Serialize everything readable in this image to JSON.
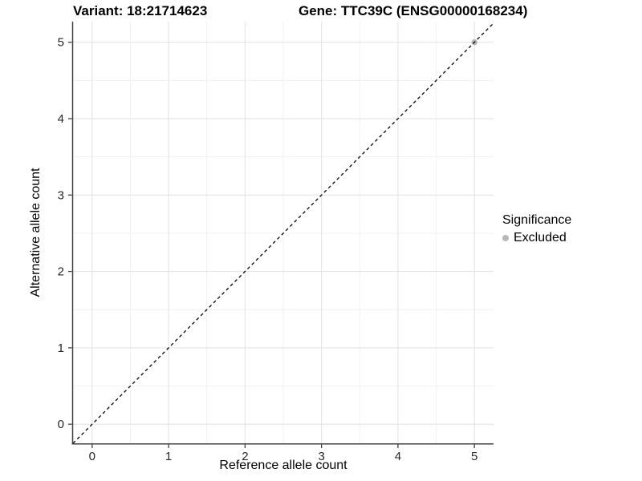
{
  "titles": {
    "left": "Variant: 18:21714623",
    "right": "Gene: TTC39C (ENSG00000168234)"
  },
  "chart_data": {
    "type": "scatter",
    "xlabel": "Reference allele count",
    "ylabel": "Alternative allele count",
    "xlim": [
      -0.25,
      5.25
    ],
    "ylim": [
      -0.25,
      5.27
    ],
    "x_ticks": [
      0,
      1,
      2,
      3,
      4,
      5
    ],
    "y_ticks": [
      0,
      1,
      2,
      3,
      4,
      5
    ],
    "grid": {
      "major": true,
      "minor": true
    },
    "reference_line": {
      "kind": "identity y=x",
      "style": "dashed",
      "color": "#000000"
    },
    "points": [
      {
        "x": 5,
        "y": 5,
        "significance": "Excluded"
      }
    ],
    "legend": {
      "title": "Significance",
      "position": "right",
      "items": [
        {
          "label": "Excluded",
          "color": "#b8b8b8"
        }
      ]
    },
    "colors": {
      "major_grid": "#e4e4e4",
      "minor_grid": "#f1f1f1",
      "axis": "#404040",
      "tick_text": "#262626",
      "point": "#b8b8b8",
      "background": "#ffffff"
    }
  }
}
